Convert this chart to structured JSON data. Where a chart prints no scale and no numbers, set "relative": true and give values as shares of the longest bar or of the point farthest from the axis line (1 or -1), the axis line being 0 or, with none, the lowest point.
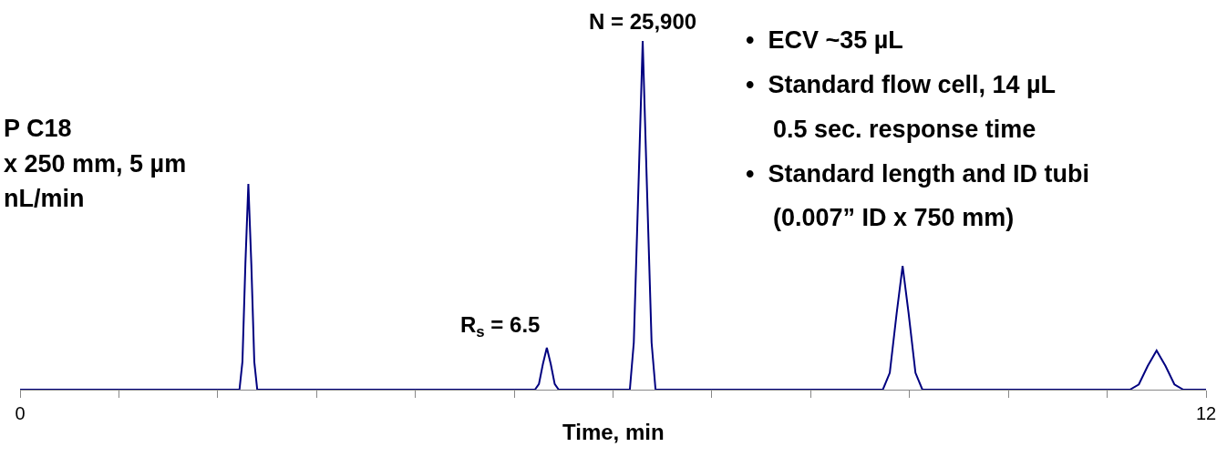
{
  "chart_data": {
    "type": "line",
    "relative": true,
    "xlabel": "Time, min",
    "x": [
      0,
      2.22,
      2.25,
      2.28,
      2.31,
      2.34,
      2.37,
      2.4,
      5.21,
      5.25,
      5.29,
      5.33,
      5.37,
      5.41,
      5.45,
      6.17,
      6.21,
      6.26,
      6.3,
      6.34,
      6.39,
      6.43,
      8.73,
      8.8,
      8.87,
      8.93,
      8.99,
      9.06,
      9.13,
      11.23,
      11.32,
      11.41,
      11.5,
      11.59,
      11.68,
      11.77,
      12
    ],
    "series": [
      {
        "color": "#000080",
        "values": [
          0,
          0,
          0.08,
          0.36,
          0.59,
          0.36,
          0.08,
          0,
          0,
          0.016,
          0.073,
          0.12,
          0.073,
          0.016,
          0,
          0,
          0.135,
          0.61,
          1,
          0.61,
          0.135,
          0,
          0,
          0.048,
          0.22,
          0.355,
          0.22,
          0.048,
          0,
          0,
          0.015,
          0.068,
          0.112,
          0.068,
          0.015,
          0,
          0
        ]
      }
    ],
    "xlim": [
      0,
      12
    ],
    "xticks": [
      0,
      {
        "value": 1,
        "label": null
      },
      {
        "value": 2,
        "label": null
      },
      {
        "value": 3,
        "label": null
      },
      {
        "value": 4,
        "label": null
      },
      {
        "value": 5,
        "label": null
      },
      {
        "value": 6,
        "label": null
      },
      {
        "value": 7,
        "label": null
      },
      {
        "value": 8,
        "label": null
      },
      {
        "value": 9,
        "label": null
      },
      {
        "value": 10,
        "label": null
      },
      {
        "value": 11,
        "label": null
      },
      12
    ],
    "annotations": [
      {
        "text": "N = 25,900",
        "x": 6.3,
        "y": 1
      },
      {
        "text": "R$_{s}$ = 6.5",
        "x": 5.33,
        "y": 0.12
      },
      "P C18",
      "x 250 mm, 5 µm",
      "nL/min",
      "•  ECV ~35 µL",
      "•  Standard flow cell, 14 µL",
      "    0.5 sec. response time",
      "•  Standard length and ID tubi",
      "    (0.007” ID x 750 mm)"
    ],
    "legend": false,
    "marker": "none",
    "line_style": "solid"
  }
}
